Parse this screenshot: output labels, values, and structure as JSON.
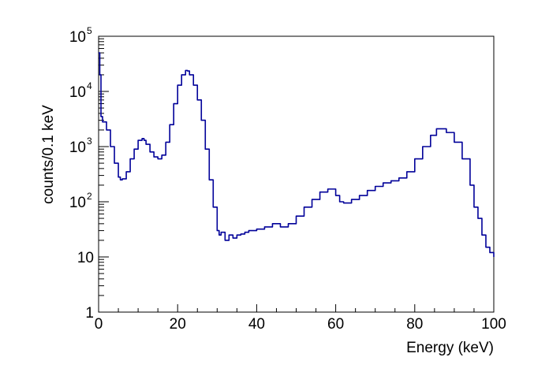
{
  "chart_data": {
    "type": "line",
    "title": "",
    "xlabel": "Energy (keV)",
    "ylabel": "counts/0.1 keV",
    "xlim": [
      0,
      100
    ],
    "ylim": [
      1,
      100000
    ],
    "yscale": "log",
    "grid": false,
    "legend": "none",
    "x_ticks": [
      {
        "value": 0,
        "label": "0"
      },
      {
        "value": 20,
        "label": "20"
      },
      {
        "value": 40,
        "label": "40"
      },
      {
        "value": 60,
        "label": "60"
      },
      {
        "value": 80,
        "label": "80"
      },
      {
        "value": 100,
        "label": "100"
      }
    ],
    "y_ticks": [
      {
        "value": 1,
        "base": "1",
        "exp": ""
      },
      {
        "value": 10,
        "base": "10",
        "exp": ""
      },
      {
        "value": 100,
        "base": "10",
        "exp": "2"
      },
      {
        "value": 1000,
        "base": "10",
        "exp": "3"
      },
      {
        "value": 10000,
        "base": "10",
        "exp": "4"
      },
      {
        "value": 100000,
        "base": "10",
        "exp": "5"
      }
    ],
    "series": [
      {
        "color": "#000099",
        "x": [
          0.0,
          0.3,
          0.6,
          1.0,
          2.0,
          3.0,
          4.0,
          5.0,
          5.5,
          6.0,
          7.0,
          8.0,
          9.0,
          10.0,
          11.0,
          11.5,
          12.0,
          13.0,
          14.0,
          15.0,
          16.0,
          17.0,
          18.0,
          19.0,
          20.0,
          21.0,
          22.0,
          22.5,
          23.0,
          24.0,
          25.0,
          26.0,
          27.0,
          28.0,
          29.0,
          30.0,
          30.5,
          31.0,
          32.0,
          33.0,
          34.0,
          35.0,
          36.0,
          37.0,
          38.0,
          40.0,
          42.0,
          44.0,
          46.0,
          48.0,
          50.0,
          52.0,
          54.0,
          56.0,
          58.0,
          60.0,
          61.0,
          62.0,
          64.0,
          66.0,
          68.0,
          70.0,
          72.0,
          74.0,
          76.0,
          78.0,
          80.0,
          82.0,
          84.0,
          85.5,
          87.0,
          88.0,
          90.0,
          92.0,
          94.0,
          95.0,
          96.0,
          97.0,
          98.0,
          99.0,
          100.0
        ],
        "y": [
          50000,
          20000,
          3500,
          2800,
          2000,
          1000,
          500,
          280,
          250,
          260,
          350,
          600,
          900,
          1300,
          1400,
          1300,
          1100,
          800,
          650,
          600,
          700,
          1200,
          2500,
          6000,
          13000,
          20000,
          24000,
          23500,
          20000,
          13000,
          7000,
          3000,
          900,
          250,
          80,
          30,
          25,
          28,
          20,
          25,
          22,
          25,
          26,
          28,
          30,
          32,
          35,
          40,
          35,
          40,
          55,
          80,
          110,
          150,
          170,
          130,
          100,
          95,
          110,
          130,
          160,
          190,
          220,
          240,
          270,
          350,
          600,
          1000,
          1600,
          2100,
          2100,
          1800,
          1200,
          600,
          200,
          80,
          50,
          25,
          15,
          12,
          10
        ]
      }
    ]
  }
}
